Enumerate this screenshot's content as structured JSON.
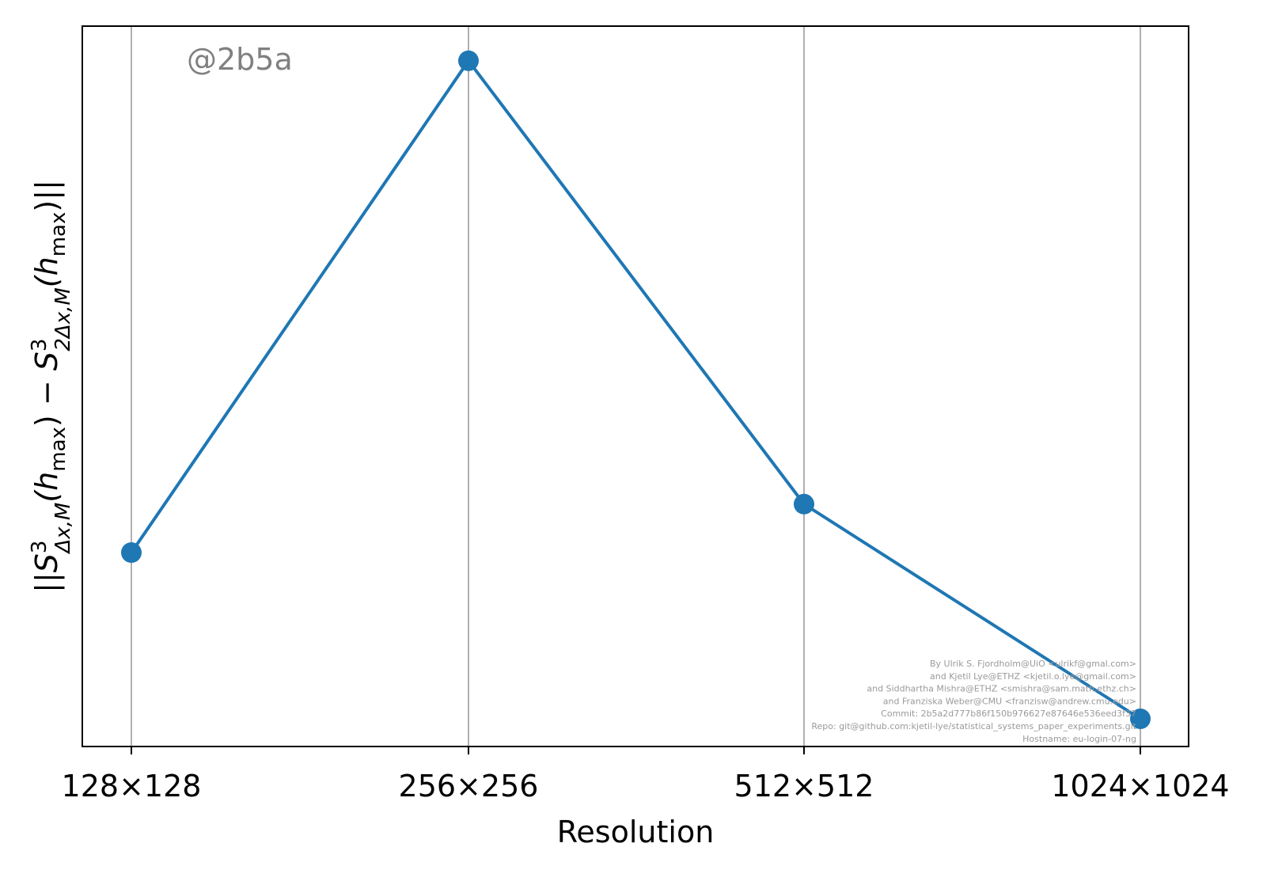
{
  "chart_data": {
    "type": "line",
    "categories": [
      "128×128",
      "256×256",
      "512×512",
      "1024×1024"
    ],
    "series": [
      {
        "values": [
          0.28,
          0.99,
          0.35,
          0.04
        ],
        "color": "#1f77b4"
      }
    ],
    "ylim": [
      0.0,
      1.04
    ],
    "xlabel": "Resolution",
    "ylabel": {
      "prefix": "||",
      "s1_main": "S",
      "s1_sup": "3",
      "s1_sub": "Δx,M",
      "s1_arg_open": "(h",
      "s1_arg_sub": "max",
      "s1_arg_close": ")",
      "minus": " − ",
      "s2_main": "S",
      "s2_sup": "3",
      "s2_sub": "2Δx,M",
      "s2_arg_open": "(h",
      "s2_arg_sub": "max",
      "s2_arg_close": ")",
      "suffix": "||"
    },
    "y_tick_labels": false,
    "grid": "x",
    "annotation": "@2b5a",
    "credits": [
      "By Ulrik S. Fjordholm@UiO <ulrikf@gmal.com>",
      "and Kjetil Lye@ETHZ <kjetil.o.lye@gmail.com>",
      "and Siddhartha Mishra@ETHZ <smishra@sam.math.ethz.ch>",
      "and Franziska Weber@CMU <franzisw@andrew.cmu.edu>",
      "Commit: 2b5a2d777b86f150b976627e87646e536eed3f37",
      "Repo: git@github.com:kjetil-lye/statistical_systems_paper_experiments.git",
      "Hostname: eu-login-07-ng"
    ]
  }
}
